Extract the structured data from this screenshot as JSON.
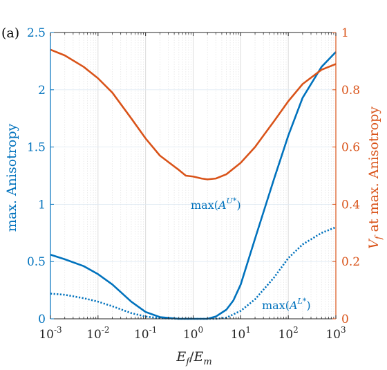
{
  "panel_label": "(a)",
  "colors": {
    "left": "#0072BD",
    "right": "#D95319",
    "grid_major": "#d8d8d8",
    "grid_minor": "#e6e6e6"
  },
  "chart_data": {
    "type": "line",
    "x_scale": "log",
    "xlabel": {
      "base": "E",
      "num_sub": "f",
      "den_sub": "m"
    },
    "xlim": [
      0.001,
      1000
    ],
    "x_ticks": [
      {
        "value": 0.001,
        "exp": "-3"
      },
      {
        "value": 0.01,
        "exp": "-2"
      },
      {
        "value": 0.1,
        "exp": "-1"
      },
      {
        "value": 1,
        "exp": "0"
      },
      {
        "value": 10,
        "exp": "1"
      },
      {
        "value": 100,
        "exp": "2"
      },
      {
        "value": 1000,
        "exp": "3"
      }
    ],
    "x_tick_base": "10",
    "ylabel_left": "max. Anisotropy",
    "ylim_left": [
      0,
      2.5
    ],
    "yticks_left": [
      "0",
      "0.5",
      "1",
      "1.5",
      "2",
      "2.5"
    ],
    "ylabel_right": {
      "v": "V",
      "sub": "f",
      "rest": " at max. Anisotropy"
    },
    "ylim_right": [
      0,
      1
    ],
    "yticks_right": [
      "0",
      "0.2",
      "0.4",
      "0.6",
      "0.8",
      "1"
    ],
    "grid": true,
    "series": [
      {
        "id": "upper",
        "axis": "left",
        "style": "solid",
        "x": [
          0.001,
          0.002,
          0.005,
          0.01,
          0.02,
          0.05,
          0.1,
          0.2,
          0.5,
          1,
          2,
          3,
          5,
          7,
          10,
          20,
          50,
          100,
          200,
          500,
          1000
        ],
        "y": [
          0.56,
          0.52,
          0.46,
          0.39,
          0.3,
          0.15,
          0.06,
          0.015,
          0.0,
          0.0,
          0.0,
          0.02,
          0.08,
          0.16,
          0.3,
          0.7,
          1.22,
          1.6,
          1.93,
          2.2,
          2.33
        ]
      },
      {
        "id": "lower",
        "axis": "left",
        "style": "dotted",
        "x": [
          0.001,
          0.002,
          0.005,
          0.01,
          0.02,
          0.05,
          0.1,
          0.2,
          0.5,
          1,
          2,
          3,
          5,
          10,
          20,
          50,
          100,
          200,
          500,
          1000
        ],
        "y": [
          0.22,
          0.21,
          0.18,
          0.15,
          0.11,
          0.05,
          0.02,
          0.005,
          0.0,
          0.0,
          0.0,
          0.0,
          0.01,
          0.07,
          0.17,
          0.36,
          0.53,
          0.65,
          0.75,
          0.8
        ]
      },
      {
        "id": "vf",
        "axis": "right",
        "style": "solid",
        "x": [
          0.001,
          0.002,
          0.005,
          0.01,
          0.02,
          0.05,
          0.1,
          0.2,
          0.5,
          0.7,
          1,
          1.5,
          2,
          3,
          5,
          10,
          20,
          50,
          100,
          200,
          500,
          1000
        ],
        "y": [
          0.94,
          0.92,
          0.88,
          0.84,
          0.79,
          0.7,
          0.63,
          0.57,
          0.52,
          0.5,
          0.497,
          0.49,
          0.487,
          0.49,
          0.505,
          0.545,
          0.6,
          0.69,
          0.76,
          0.82,
          0.87,
          0.89
        ]
      }
    ],
    "annotations": {
      "upper": {
        "fn": "max(",
        "sym": "A",
        "sup": "U*",
        "close": ")"
      },
      "lower": {
        "fn": "max(",
        "sym": "A",
        "sup": "L*",
        "close": ")"
      }
    }
  }
}
